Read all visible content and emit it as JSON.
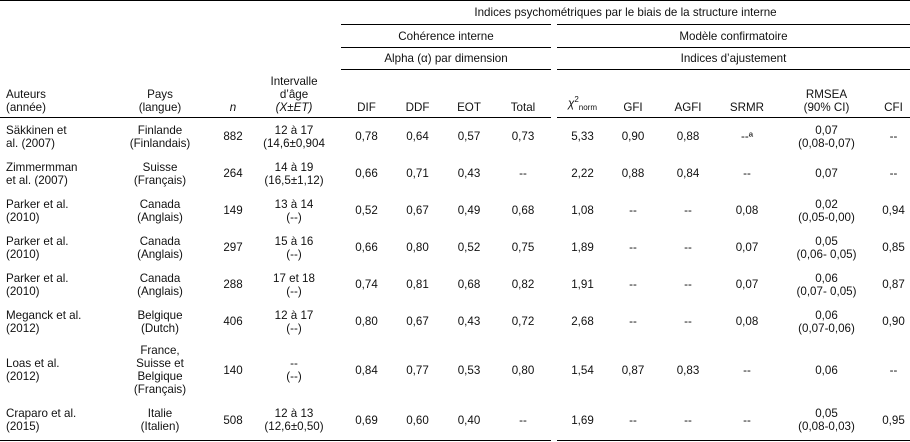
{
  "header": {
    "top_title": "Indices psychométriques par le biais de la structure interne",
    "coherence": "Cohérence interne",
    "modele": "Modèle confirmatoire",
    "alpha": "Alpha (α) par dimension",
    "indices": "Indices d’ajustement",
    "auteurs": [
      "Auteurs",
      "(année)"
    ],
    "pays": [
      "Pays",
      "(langue)"
    ],
    "n": "n",
    "age": [
      "Intervalle",
      "d’âge",
      "(X±ET)"
    ],
    "dif": "DIF",
    "ddf": "DDF",
    "eot": "EOT",
    "total": "Total",
    "chi": "χ",
    "chi_sup": "2",
    "chi_sub": "norm",
    "gfi": "GFI",
    "agfi": "AGFI",
    "srmr": "SRMR",
    "rmsea": [
      "RMSEA",
      "(90% CI)"
    ],
    "cfi": "CFI"
  },
  "rows": [
    {
      "auteurs": [
        "Säkkinen et",
        "al. (2007)"
      ],
      "pays": [
        "Finlande",
        "(Finlandais)"
      ],
      "n": "882",
      "age": [
        "12 à 17",
        "(14,6±0,904"
      ],
      "dif": "0,78",
      "ddf": "0,64",
      "eot": "0,57",
      "total": "0,73",
      "chi": "5,33",
      "gfi": "0,90",
      "agfi": "0,88",
      "srmr": "--ª",
      "rmsea": [
        "0,07",
        "(0,08-0,07)"
      ],
      "cfi": "--"
    },
    {
      "auteurs": [
        "Zimmermman",
        "et al. (2007)"
      ],
      "pays": [
        "Suisse",
        "(Français)"
      ],
      "n": "264",
      "age": [
        "14 à 19",
        "(16,5±1,12)"
      ],
      "dif": "0,66",
      "ddf": "0,71",
      "eot": "0,43",
      "total": "--",
      "chi": "2,22",
      "gfi": "0,88",
      "agfi": "0,84",
      "srmr": "--",
      "rmsea": [
        "0,07",
        ""
      ],
      "cfi": "--"
    },
    {
      "auteurs": [
        "Parker et al.",
        "(2010)"
      ],
      "pays": [
        "Canada",
        "(Anglais)"
      ],
      "n": "149",
      "age": [
        "13 à 14",
        "(--)"
      ],
      "dif": "0,52",
      "ddf": "0,67",
      "eot": "0,49",
      "total": "0,68",
      "chi": "1,08",
      "gfi": "--",
      "agfi": "--",
      "srmr": "0,08",
      "rmsea": [
        "0,02",
        "(0,05-0,00)"
      ],
      "cfi": "0,94"
    },
    {
      "auteurs": [
        "Parker et al.",
        "(2010)"
      ],
      "pays": [
        "Canada",
        "(Anglais)"
      ],
      "n": "297",
      "age": [
        "15 à 16",
        "(--)"
      ],
      "dif": "0,66",
      "ddf": "0,80",
      "eot": "0,52",
      "total": "0,75",
      "chi": "1,89",
      "gfi": "--",
      "agfi": "--",
      "srmr": "0,07",
      "rmsea": [
        "0,05",
        "(0,06- 0,05)"
      ],
      "cfi": "0,85"
    },
    {
      "auteurs": [
        "Parker et al.",
        "(2010)"
      ],
      "pays": [
        "Canada",
        "(Anglais)"
      ],
      "n": "288",
      "age": [
        "17 et 18",
        "(--)"
      ],
      "dif": "0,74",
      "ddf": "0,81",
      "eot": "0,68",
      "total": "0,82",
      "chi": "1,91",
      "gfi": "--",
      "agfi": "--",
      "srmr": "0,07",
      "rmsea": [
        "0,06",
        "(0,07- 0,05)"
      ],
      "cfi": "0,87"
    },
    {
      "auteurs": [
        "Meganck et al.",
        "(2012)"
      ],
      "pays": [
        "Belgique",
        "(Dutch)"
      ],
      "n": "406",
      "age": [
        "12 à 17",
        "(--)"
      ],
      "dif": "0,80",
      "ddf": "0,67",
      "eot": "0,43",
      "total": "0,72",
      "chi": "2,68",
      "gfi": "--",
      "agfi": "--",
      "srmr": "0,08",
      "rmsea": [
        "0,06",
        "(0,07-0,06)"
      ],
      "cfi": "0,90"
    },
    {
      "auteurs": [
        "Loas et al.",
        "(2012)"
      ],
      "pays": [
        "France,",
        "Suisse et",
        "Belgique",
        "(Français)"
      ],
      "n": "140",
      "age": [
        "--",
        "(--)"
      ],
      "dif": "0,84",
      "ddf": "0,77",
      "eot": "0,53",
      "total": "0,80",
      "chi": "1,54",
      "gfi": "0,87",
      "agfi": "0,83",
      "srmr": "--",
      "rmsea": [
        "0,06",
        ""
      ],
      "cfi": "--"
    },
    {
      "auteurs": [
        "Craparo et al.",
        "(2015)"
      ],
      "pays": [
        "Italie",
        "(Italien)"
      ],
      "n": "508",
      "age": [
        "12 à 13",
        "(12,6±0,50)"
      ],
      "dif": "0,69",
      "ddf": "0,60",
      "eot": "0,40",
      "total": "--",
      "chi": "1,69",
      "gfi": "--",
      "agfi": "--",
      "srmr": "--",
      "rmsea": [
        "0,05",
        "(0,08-0,03)"
      ],
      "cfi": "0,95"
    }
  ]
}
